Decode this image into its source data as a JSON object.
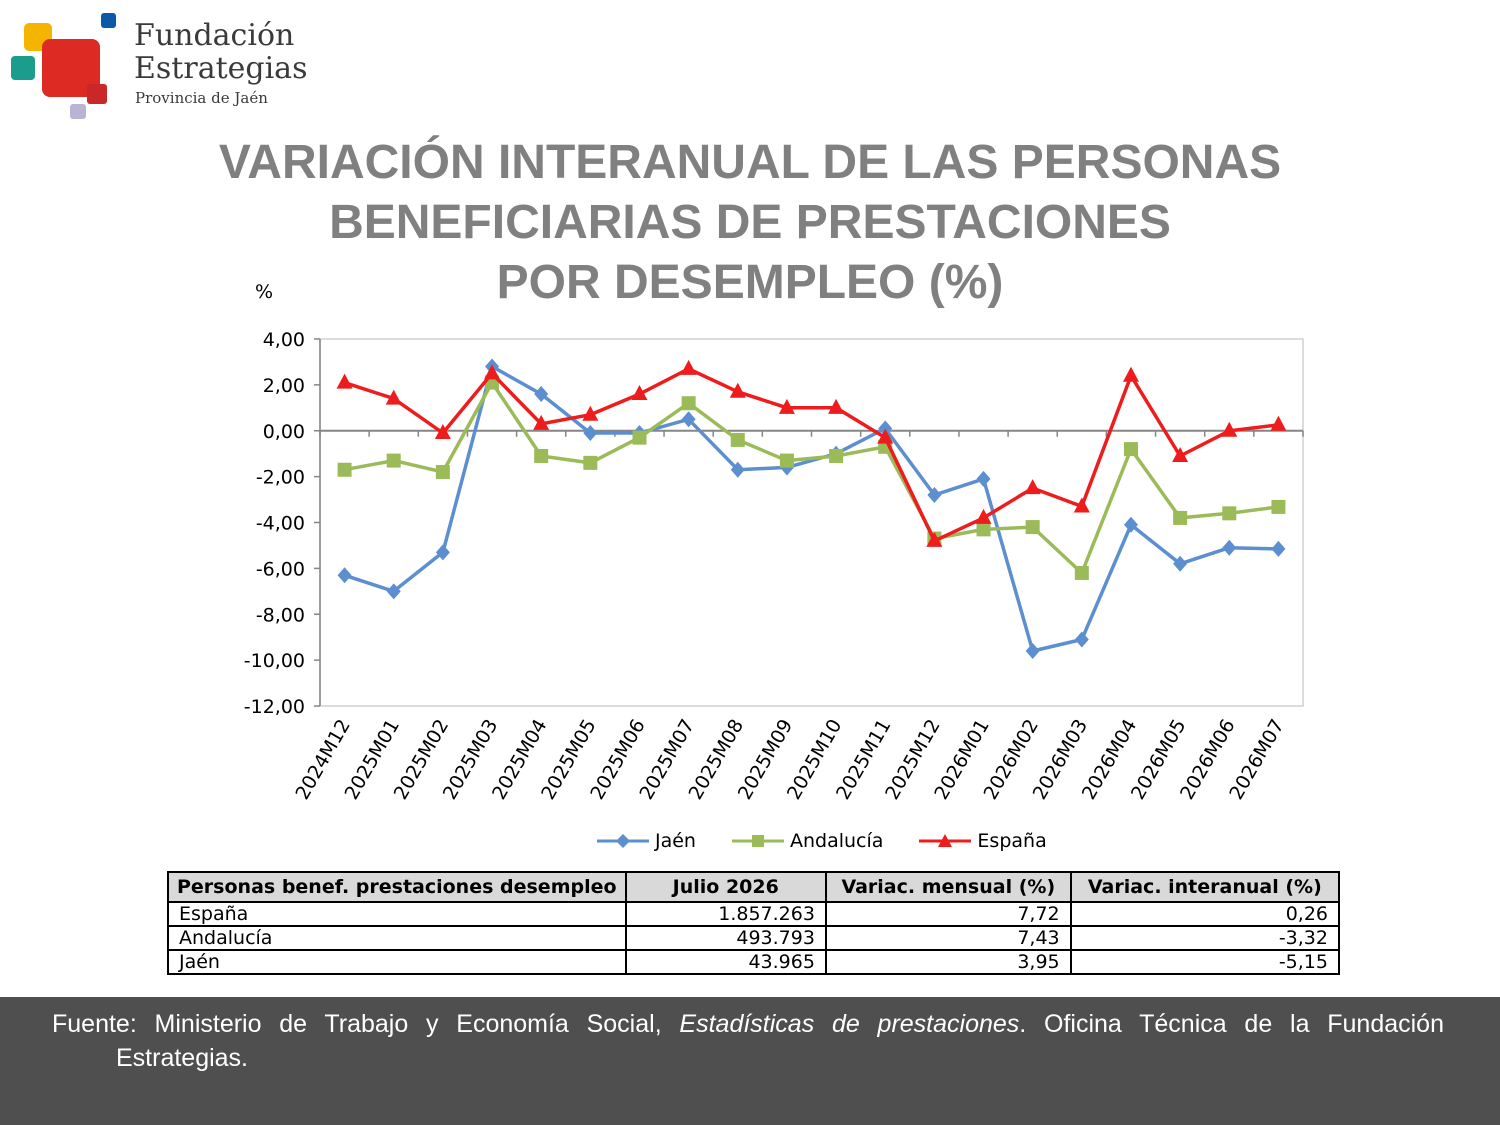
{
  "logo": {
    "line1": "Fundación",
    "line2": "Estrategias",
    "line3": "Provincia de Jaén"
  },
  "title": {
    "line1": "VARIACIÓN INTERANUAL DE LAS PERSONAS",
    "line2": "BENEFICIARIAS DE PRESTACIONES",
    "line3": "POR DESEMPLEO (%)"
  },
  "chart_data": {
    "type": "line",
    "ylabel": "%",
    "ylim": [
      -12,
      4
    ],
    "yticks": [
      "4,00",
      "2,00",
      "0,00",
      "-2,00",
      "-4,00",
      "-6,00",
      "-8,00",
      "-10,00",
      "-12,00"
    ],
    "yticks_values": [
      4,
      2,
      0,
      -2,
      -4,
      -6,
      -8,
      -10,
      -12
    ],
    "categories": [
      "2024M12",
      "2025M01",
      "2025M02",
      "2025M03",
      "2025M04",
      "2025M05",
      "2025M06",
      "2025M07",
      "2025M08",
      "2025M09",
      "2025M10",
      "2025M11",
      "2025M12",
      "2026M01",
      "2026M02",
      "2026M03",
      "2026M04",
      "2026M05",
      "2026M06",
      "2026M07"
    ],
    "grid": false,
    "legend_position": "bottom",
    "series": [
      {
        "name": "Jaén",
        "color": "#5b8fd0",
        "marker": "diamond",
        "values": [
          -6.3,
          -7.0,
          -5.3,
          2.8,
          1.6,
          -0.1,
          -0.1,
          0.5,
          -1.7,
          -1.6,
          -1.0,
          0.1,
          -2.8,
          -2.1,
          -9.6,
          -9.1,
          -4.1,
          -5.8,
          -5.1,
          -5.15
        ]
      },
      {
        "name": "Andalucía",
        "color": "#9bbb59",
        "marker": "square",
        "values": [
          -1.7,
          -1.3,
          -1.8,
          2.1,
          -1.1,
          -1.4,
          -0.3,
          1.2,
          -0.4,
          -1.3,
          -1.1,
          -0.7,
          -4.7,
          -4.3,
          -4.2,
          -6.2,
          -0.8,
          -3.8,
          -3.6,
          -3.32
        ]
      },
      {
        "name": "España",
        "color": "#ee1c1c",
        "marker": "triangle",
        "values": [
          2.1,
          1.4,
          -0.1,
          2.5,
          0.3,
          0.7,
          1.6,
          2.7,
          1.7,
          1.0,
          1.0,
          -0.3,
          -4.8,
          -3.8,
          -2.5,
          -3.3,
          2.4,
          -1.1,
          0.0,
          0.26
        ]
      }
    ]
  },
  "table": {
    "headers": [
      "Personas benef. prestaciones desempleo",
      "Julio 2026",
      "Variac. mensual (%)",
      "Variac. interanual (%)"
    ],
    "rows": [
      [
        "España",
        "1.857.263",
        "7,72",
        "0,26"
      ],
      [
        "Andalucía",
        "493.793",
        "7,43",
        "-3,32"
      ],
      [
        "Jaén",
        "43.965",
        "3,95",
        "-5,15"
      ]
    ]
  },
  "footer": {
    "prefix": "Fuente: Ministerio de Trabajo y Economía Social, ",
    "italic": "Estadísticas de prestaciones",
    "suffix": ". Oficina Técnica de la Fundación",
    "line2": "Estrategias."
  },
  "colors": {
    "title": "#808080",
    "footer_bg": "#4f4f4f",
    "logo_red": "#dd2a22",
    "logo_yellow": "#f5b400",
    "logo_teal": "#1b9c8c",
    "logo_blue": "#0a5aa8",
    "logo_lilac": "#b9b3d6"
  }
}
